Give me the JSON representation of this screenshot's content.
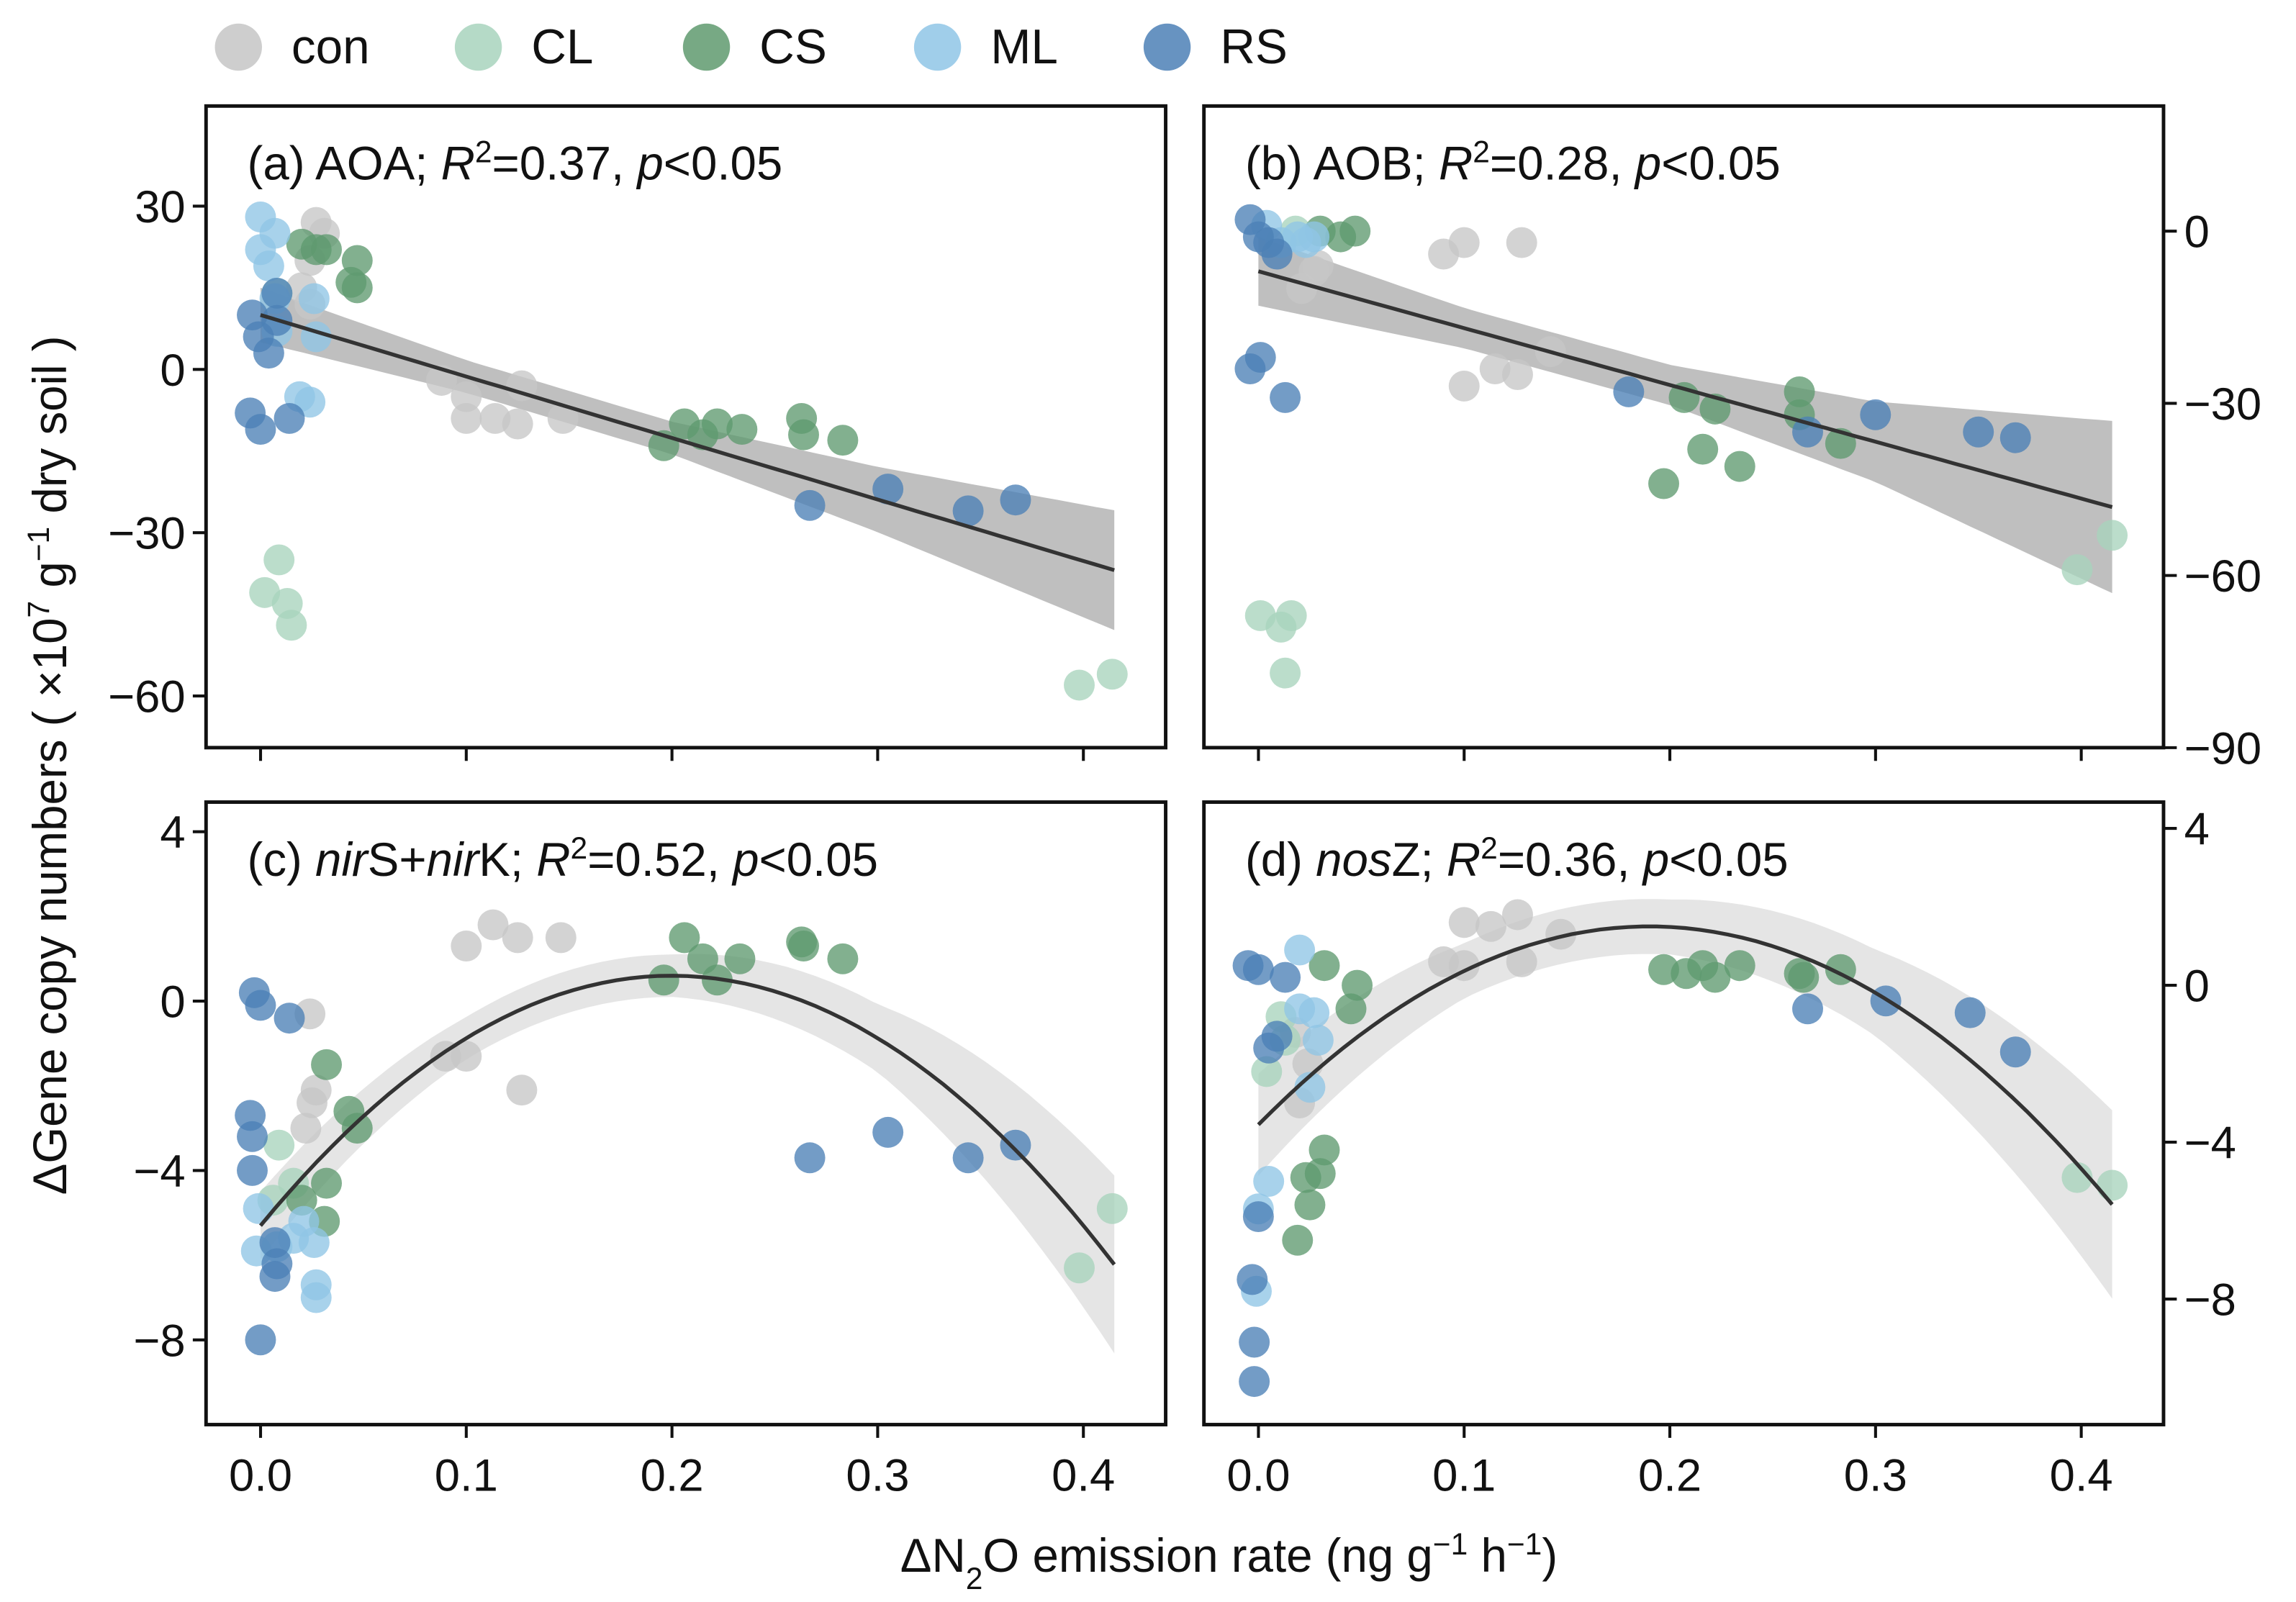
{
  "colors": {
    "con": "#c6c6c6",
    "CL": "#a8d3bd",
    "CS": "#5f9a6f",
    "ML": "#8fc5e6",
    "RS": "#4c80b6",
    "band_linear": "#a9a9a9",
    "band_quad": "#e2e2e2",
    "line": "#333333"
  },
  "legend": [
    {
      "key": "con",
      "label": "con"
    },
    {
      "key": "CL",
      "label": "CL"
    },
    {
      "key": "CS",
      "label": "CS"
    },
    {
      "key": "ML",
      "label": "ML"
    },
    {
      "key": "RS",
      "label": "RS"
    }
  ],
  "x_label": [
    {
      "t": "ΔN"
    },
    {
      "t": "2",
      "s": "sub"
    },
    {
      "t": "O emission rate (ng g"
    },
    {
      "t": "−1",
      "s": "sup"
    },
    {
      "t": " h"
    },
    {
      "t": "−1",
      "s": "sup"
    },
    {
      "t": ")"
    }
  ],
  "y_label": [
    {
      "t": "ΔGene copy numbers ( ×10"
    },
    {
      "t": "7",
      "s": "sup"
    },
    {
      "t": " g"
    },
    {
      "t": "−1",
      "s": "sup"
    },
    {
      "t": " dry soil )"
    }
  ],
  "chart_data": [
    {
      "id": "a",
      "type": "scatter",
      "annotation": [
        {
          "t": "(a) AOA; "
        },
        {
          "t": "R",
          "s": "i"
        },
        {
          "t": "2",
          "s": "sup"
        },
        {
          "t": "=0.37, "
        },
        {
          "t": "p",
          "s": "i"
        },
        {
          "t": "<0.05"
        }
      ],
      "xlim": [
        -0.0265,
        0.44
      ],
      "ylim": [
        -69.5,
        48.4
      ],
      "yaxis": "left",
      "show_xticklabels": false,
      "xticks": [
        0,
        0.1,
        0.2,
        0.3,
        0.4
      ],
      "xticklabels": [
        "0.0",
        "0.1",
        "0.2",
        "0.3",
        "0.4"
      ],
      "yticks": [
        -60,
        -30,
        0,
        30
      ],
      "yticklabels": [
        "−60",
        "−30",
        "0",
        "30"
      ],
      "fit": {
        "type": "linear",
        "coef": [
          10,
          -113
        ],
        "xrange": [
          0,
          0.415
        ]
      },
      "ci": {
        "x": [
          0,
          0.1,
          0.2,
          0.3,
          0.415
        ],
        "halfwidth": [
          5,
          3,
          3,
          6,
          11
        ]
      },
      "series": {
        "con": [
          [
            0.027,
            27
          ],
          [
            0.031,
            25
          ],
          [
            0.024,
            20
          ],
          [
            0.02,
            15
          ],
          [
            0.024,
            12
          ],
          [
            0.088,
            -2
          ],
          [
            0.1,
            -5
          ],
          [
            0.1,
            -9
          ],
          [
            0.114,
            -9
          ],
          [
            0.125,
            -10
          ],
          [
            0.127,
            -3
          ],
          [
            0.147,
            -9
          ]
        ],
        "CL": [
          [
            0.008,
            14
          ],
          [
            0.009,
            -35
          ],
          [
            0.002,
            -41
          ],
          [
            0.013,
            -43
          ],
          [
            0.015,
            -47
          ],
          [
            0.398,
            -58
          ],
          [
            0.414,
            -56
          ]
        ],
        "CS": [
          [
            0.02,
            23
          ],
          [
            0.027,
            22
          ],
          [
            0.032,
            22
          ],
          [
            0.047,
            20
          ],
          [
            0.044,
            16
          ],
          [
            0.047,
            15
          ],
          [
            0.196,
            -14
          ],
          [
            0.206,
            -10
          ],
          [
            0.215,
            -12
          ],
          [
            0.222,
            -10
          ],
          [
            0.234,
            -11
          ],
          [
            0.263,
            -9
          ],
          [
            0.264,
            -12
          ],
          [
            0.283,
            -13
          ]
        ],
        "ML": [
          [
            0,
            28
          ],
          [
            0.007,
            25
          ],
          [
            0,
            22
          ],
          [
            0.004,
            19
          ],
          [
            0.007,
            13
          ],
          [
            0.026,
            13
          ],
          [
            0.027,
            6
          ],
          [
            0.008,
            7
          ],
          [
            0.019,
            -5
          ],
          [
            0.024,
            -6
          ]
        ],
        "RS": [
          [
            0.008,
            14
          ],
          [
            -0.004,
            10
          ],
          [
            -0.001,
            6
          ],
          [
            0.004,
            3
          ],
          [
            0.008,
            9
          ],
          [
            -0.005,
            -8
          ],
          [
            0,
            -11
          ],
          [
            0.014,
            -9
          ],
          [
            0.267,
            -25
          ],
          [
            0.305,
            -22
          ],
          [
            0.344,
            -26
          ],
          [
            0.367,
            -24
          ]
        ]
      }
    },
    {
      "id": "b",
      "type": "scatter",
      "annotation": [
        {
          "t": "(b) AOB; "
        },
        {
          "t": "R",
          "s": "i"
        },
        {
          "t": "2",
          "s": "sup"
        },
        {
          "t": "=0.28, "
        },
        {
          "t": "p",
          "s": "i"
        },
        {
          "t": "<0.05"
        }
      ],
      "xlim": [
        -0.0265,
        0.44
      ],
      "ylim": [
        -90,
        21.8
      ],
      "yaxis": "right",
      "show_xticklabels": false,
      "xticks": [
        0,
        0.1,
        0.2,
        0.3,
        0.4
      ],
      "xticklabels": [
        "0.0",
        "0.1",
        "0.2",
        "0.3",
        "0.4"
      ],
      "yticks": [
        -90,
        -60,
        -30,
        0
      ],
      "yticklabels": [
        "−90",
        "−60",
        "−30",
        "0"
      ],
      "fit": {
        "type": "linear",
        "coef": [
          -7,
          -99
        ],
        "xrange": [
          0,
          0.415
        ]
      },
      "ci": {
        "x": [
          0,
          0.1,
          0.2,
          0.3,
          0.415
        ],
        "halfwidth": [
          6,
          3.5,
          3.5,
          7,
          15
        ]
      },
      "series": {
        "con": [
          [
            0.09,
            -4
          ],
          [
            0.1,
            -2
          ],
          [
            0.128,
            -2
          ],
          [
            0.142,
            -21
          ],
          [
            0.115,
            -24
          ],
          [
            0.126,
            -25
          ],
          [
            0.1,
            -27
          ],
          [
            0.029,
            -6
          ],
          [
            0.021,
            -10
          ],
          [
            0.027,
            -7
          ]
        ],
        "CL": [
          [
            0.018,
            0
          ],
          [
            0.415,
            -53
          ],
          [
            0.398,
            -59
          ],
          [
            0.001,
            -67
          ],
          [
            0.011,
            -69
          ],
          [
            0.016,
            -67
          ],
          [
            0.013,
            -77
          ]
        ],
        "CS": [
          [
            0.03,
            0
          ],
          [
            0.04,
            -1
          ],
          [
            0.047,
            0
          ],
          [
            0.207,
            -29
          ],
          [
            0.222,
            -31
          ],
          [
            0.263,
            -28
          ],
          [
            0.263,
            -32
          ],
          [
            0.283,
            -37
          ],
          [
            0.197,
            -44
          ],
          [
            0.216,
            -38
          ],
          [
            0.234,
            -41
          ]
        ],
        "ML": [
          [
            0.019,
            -1
          ],
          [
            0.027,
            -1
          ],
          [
            0.023,
            -2
          ],
          [
            0.004,
            1
          ],
          [
            0.011,
            -2
          ]
        ],
        "RS": [
          [
            -0.004,
            2
          ],
          [
            0,
            -1
          ],
          [
            0.005,
            -2
          ],
          [
            0.009,
            -4
          ],
          [
            0.001,
            -22
          ],
          [
            -0.004,
            -24
          ],
          [
            0.013,
            -29
          ],
          [
            0.18,
            -28
          ],
          [
            0.3,
            -32
          ],
          [
            0.35,
            -35
          ],
          [
            0.368,
            -36
          ],
          [
            0.267,
            -35
          ]
        ]
      }
    },
    {
      "id": "c",
      "type": "scatter",
      "annotation": [
        {
          "t": "(c) "
        },
        {
          "t": "nir",
          "s": "i"
        },
        {
          "t": "S+"
        },
        {
          "t": "nir",
          "s": "i"
        },
        {
          "t": "K; "
        },
        {
          "t": "R",
          "s": "i"
        },
        {
          "t": "2",
          "s": "sup"
        },
        {
          "t": "=0.52, "
        },
        {
          "t": "p",
          "s": "i"
        },
        {
          "t": "<0.05"
        }
      ],
      "xlim": [
        -0.0265,
        0.44
      ],
      "ylim": [
        -10,
        4.7
      ],
      "yaxis": "left",
      "show_xticklabels": true,
      "xticks": [
        0,
        0.1,
        0.2,
        0.3,
        0.4
      ],
      "xticklabels": [
        "0.0",
        "0.1",
        "0.2",
        "0.3",
        "0.4"
      ],
      "yticks": [
        -8,
        -4,
        0,
        4
      ],
      "yticklabels": [
        "−8",
        "−4",
        "0",
        "4"
      ],
      "fit": {
        "type": "quadratic",
        "vertex": [
          0.2,
          0.6
        ],
        "a": -147.5,
        "xrange": [
          0,
          0.415
        ]
      },
      "ci": {
        "x": [
          0,
          0.1,
          0.2,
          0.3,
          0.415
        ],
        "halfwidth": [
          0.8,
          0.5,
          0.5,
          0.8,
          2.1
        ]
      },
      "series": {
        "con": [
          [
            0.113,
            1.8
          ],
          [
            0.125,
            1.5
          ],
          [
            0.146,
            1.5
          ],
          [
            0.1,
            1.3
          ],
          [
            0.09,
            -1.3
          ],
          [
            0.1,
            -1.3
          ],
          [
            0.127,
            -2.1
          ],
          [
            0.024,
            -0.3
          ],
          [
            0.027,
            -2.1
          ],
          [
            0.025,
            -2.4
          ],
          [
            0.022,
            -3
          ]
        ],
        "CL": [
          [
            0.009,
            -3.4
          ],
          [
            0.016,
            -4.3
          ],
          [
            0.006,
            -4.7
          ],
          [
            0.414,
            -4.9
          ],
          [
            0.398,
            -6.3
          ]
        ],
        "CS": [
          [
            0.206,
            1.5
          ],
          [
            0.196,
            0.5
          ],
          [
            0.215,
            1
          ],
          [
            0.222,
            0.5
          ],
          [
            0.233,
            1
          ],
          [
            0.263,
            1.4
          ],
          [
            0.264,
            1.3
          ],
          [
            0.283,
            1
          ],
          [
            0.032,
            -1.5
          ],
          [
            0.043,
            -2.6
          ],
          [
            0.047,
            -3
          ],
          [
            0.032,
            -4.3
          ],
          [
            0.031,
            -5.2
          ],
          [
            0.02,
            -4.7
          ]
        ],
        "ML": [
          [
            -0.001,
            -4.9
          ],
          [
            -0.002,
            -5.9
          ],
          [
            0.016,
            -5.6
          ],
          [
            0.026,
            -5.7
          ],
          [
            0.021,
            -5.2
          ],
          [
            0.027,
            -6.7
          ],
          [
            0.027,
            -7
          ],
          [
            0.008,
            -5.8
          ]
        ],
        "RS": [
          [
            -0.003,
            0.2
          ],
          [
            0,
            -0.1
          ],
          [
            0.014,
            -0.4
          ],
          [
            -0.005,
            -2.7
          ],
          [
            -0.004,
            -3.2
          ],
          [
            -0.004,
            -4
          ],
          [
            0,
            -8
          ],
          [
            0.007,
            -5.7
          ],
          [
            0.008,
            -6.2
          ],
          [
            0.007,
            -6.5
          ],
          [
            0.267,
            -3.7
          ],
          [
            0.305,
            -3.1
          ],
          [
            0.344,
            -3.7
          ],
          [
            0.367,
            -3.4
          ]
        ]
      }
    },
    {
      "id": "d",
      "type": "scatter",
      "annotation": [
        {
          "t": "(d) "
        },
        {
          "t": "nos",
          "s": "i"
        },
        {
          "t": "Z; "
        },
        {
          "t": "R",
          "s": "i"
        },
        {
          "t": "2",
          "s": "sup"
        },
        {
          "t": "=0.36, "
        },
        {
          "t": "p",
          "s": "i"
        },
        {
          "t": "<0.05"
        }
      ],
      "xlim": [
        -0.0265,
        0.44
      ],
      "ylim": [
        -11.2,
        4.67
      ],
      "yaxis": "right",
      "show_xticklabels": true,
      "xticks": [
        0,
        0.1,
        0.2,
        0.3,
        0.4
      ],
      "xticklabels": [
        "0.0",
        "0.1",
        "0.2",
        "0.3",
        "0.4"
      ],
      "yticks": [
        -8,
        -4,
        0,
        4
      ],
      "yticklabels": [
        "−8",
        "−4",
        "0",
        "4"
      ],
      "fit": {
        "type": "quadratic",
        "vertex": [
          0.19,
          1.5
        ],
        "a": -140,
        "xrange": [
          0,
          0.415
        ]
      },
      "ci": {
        "x": [
          0,
          0.1,
          0.2,
          0.3,
          0.415
        ],
        "halfwidth": [
          1.3,
          0.7,
          0.7,
          1.1,
          2.4
        ]
      },
      "series": {
        "con": [
          [
            0.1,
            1.6
          ],
          [
            0.113,
            1.5
          ],
          [
            0.126,
            1.8
          ],
          [
            0.147,
            1.3
          ],
          [
            0.09,
            0.6
          ],
          [
            0.1,
            0.5
          ],
          [
            0.128,
            0.6
          ],
          [
            0.018,
            -1.2
          ],
          [
            0.02,
            -3
          ],
          [
            0.024,
            -2
          ]
        ],
        "CL": [
          [
            0.004,
            -2.2
          ],
          [
            0.013,
            -1.4
          ],
          [
            0.011,
            -0.8
          ],
          [
            0.398,
            -4.9
          ],
          [
            0.415,
            -5.1
          ]
        ],
        "CS": [
          [
            0.032,
            0.5
          ],
          [
            0.048,
            0
          ],
          [
            0.045,
            -0.6
          ],
          [
            0.197,
            0.4
          ],
          [
            0.208,
            0.3
          ],
          [
            0.216,
            0.5
          ],
          [
            0.222,
            0.2
          ],
          [
            0.234,
            0.5
          ],
          [
            0.263,
            0.3
          ],
          [
            0.265,
            0.2
          ],
          [
            0.283,
            0.4
          ],
          [
            0.032,
            -4.2
          ],
          [
            0.03,
            -4.8
          ],
          [
            0.023,
            -4.9
          ],
          [
            0.025,
            -5.6
          ],
          [
            0.019,
            -6.5
          ]
        ],
        "ML": [
          [
            0.02,
            0.9
          ],
          [
            0.027,
            -0.7
          ],
          [
            0.02,
            -0.6
          ],
          [
            0.025,
            -2.6
          ],
          [
            0.005,
            -5
          ],
          [
            0,
            -5.7
          ],
          [
            -0.001,
            -7.8
          ],
          [
            0.029,
            -1.4
          ]
        ],
        "RS": [
          [
            -0.005,
            0.5
          ],
          [
            0,
            0.4
          ],
          [
            0.013,
            0.2
          ],
          [
            0.009,
            -1.3
          ],
          [
            0.005,
            -1.6
          ],
          [
            0,
            -5.9
          ],
          [
            -0.003,
            -7.5
          ],
          [
            -0.002,
            -9.1
          ],
          [
            -0.002,
            -10.1
          ],
          [
            0.267,
            -0.6
          ],
          [
            0.305,
            -0.4
          ],
          [
            0.346,
            -0.7
          ],
          [
            0.368,
            -1.7
          ]
        ]
      }
    }
  ]
}
